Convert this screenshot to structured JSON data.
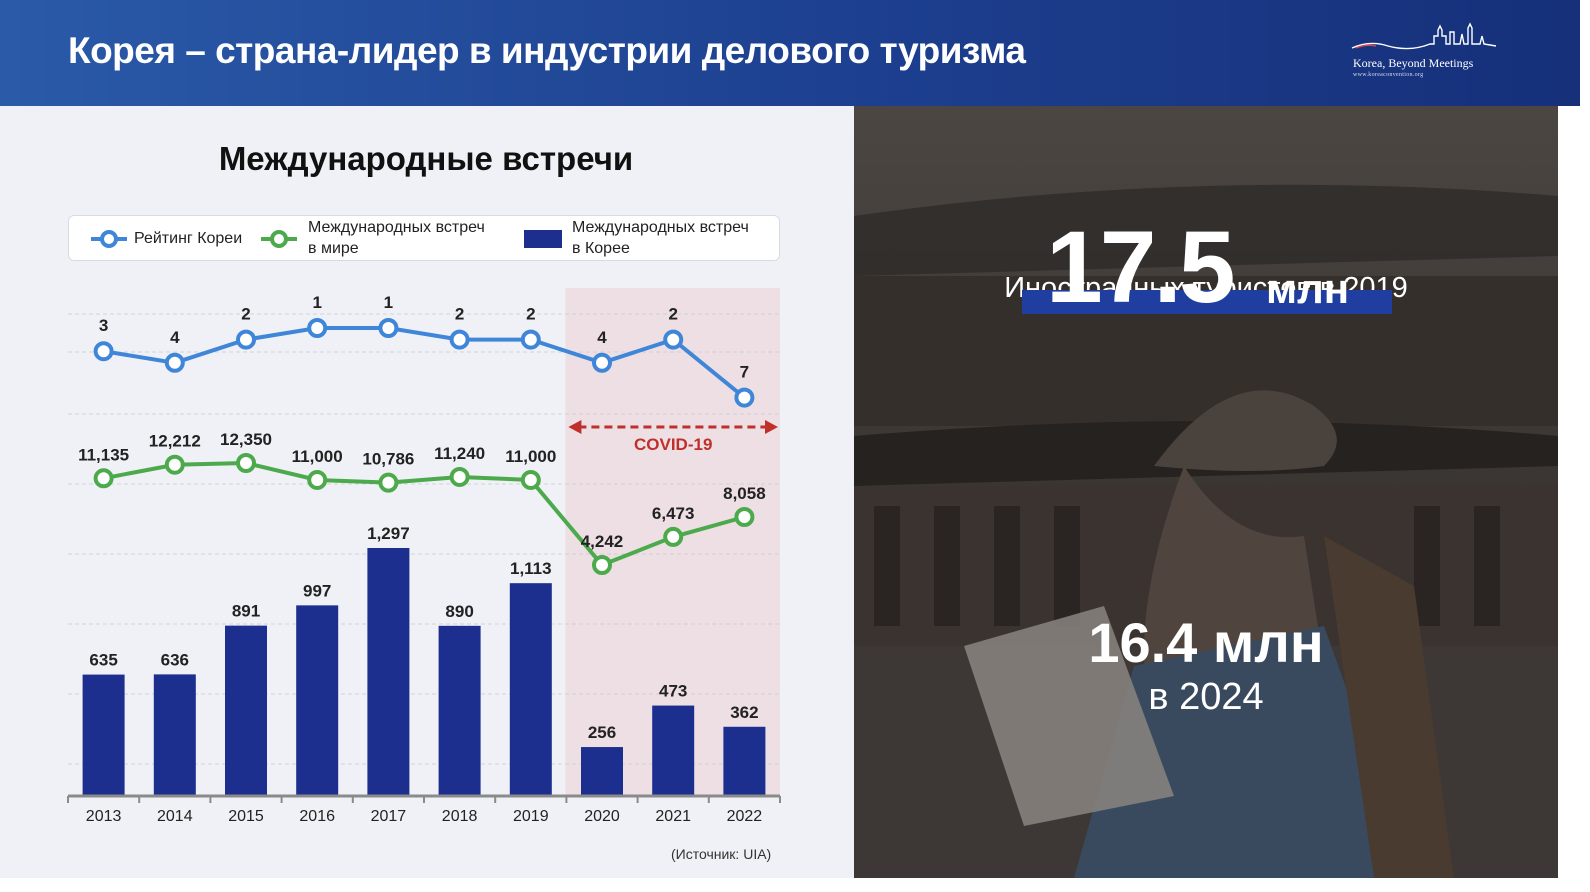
{
  "header": {
    "title": "Корея – страна-лидер в индустрии делового туризма",
    "logo_line1": "Korea, Beyond Meetings",
    "logo_line2": "www.koreaconvention.org"
  },
  "left_panel": {
    "heading": "Международные встречи",
    "source": "(Источник: UIA)"
  },
  "chart_data": {
    "type": "bar",
    "categories": [
      "2013",
      "2014",
      "2015",
      "2016",
      "2017",
      "2018",
      "2019",
      "2020",
      "2021",
      "2022"
    ],
    "series": [
      {
        "name": "Рейтинг Кореи",
        "type": "line",
        "values": [
          3,
          4,
          2,
          1,
          1,
          2,
          2,
          4,
          2,
          7
        ],
        "color": "#3f86d8"
      },
      {
        "name": "Международных встреч в мире",
        "type": "line",
        "values": [
          11135,
          12212,
          12350,
          11000,
          10786,
          11240,
          11000,
          4242,
          6473,
          8058
        ],
        "labels": [
          "11,135",
          "12,212",
          "12,350",
          "11,000",
          "10,786",
          "11,240",
          "11,000",
          "4,242",
          "6,473",
          "8,058"
        ],
        "color": "#4caa4c"
      },
      {
        "name": "Международных встреч в Корее",
        "type": "bar",
        "values": [
          635,
          636,
          891,
          997,
          1297,
          890,
          1113,
          256,
          473,
          362
        ],
        "labels": [
          "635",
          "636",
          "891",
          "997",
          "1,297",
          "890",
          "1,113",
          "256",
          "473",
          "362"
        ],
        "color": "#1c2e8e"
      }
    ],
    "legend": {
      "placement": "top",
      "items": [
        {
          "line1": "Рейтинг Кореи",
          "line2": ""
        },
        {
          "line1": "Международных встреч",
          "line2": "в мире"
        },
        {
          "line1": "Международных встреч",
          "line2": "в Корее"
        }
      ]
    },
    "annotation": {
      "text": "COVID-19",
      "from": "2020",
      "to": "2022",
      "color": "#c0302a",
      "shade": "#eddfe3"
    },
    "grid": true
  },
  "right_panel": {
    "caption": "Иностранных туристов в 2019",
    "big_number": "17.5",
    "big_unit": "млн",
    "mid_value": "16.4 млн",
    "mid_year": "в 2024"
  }
}
